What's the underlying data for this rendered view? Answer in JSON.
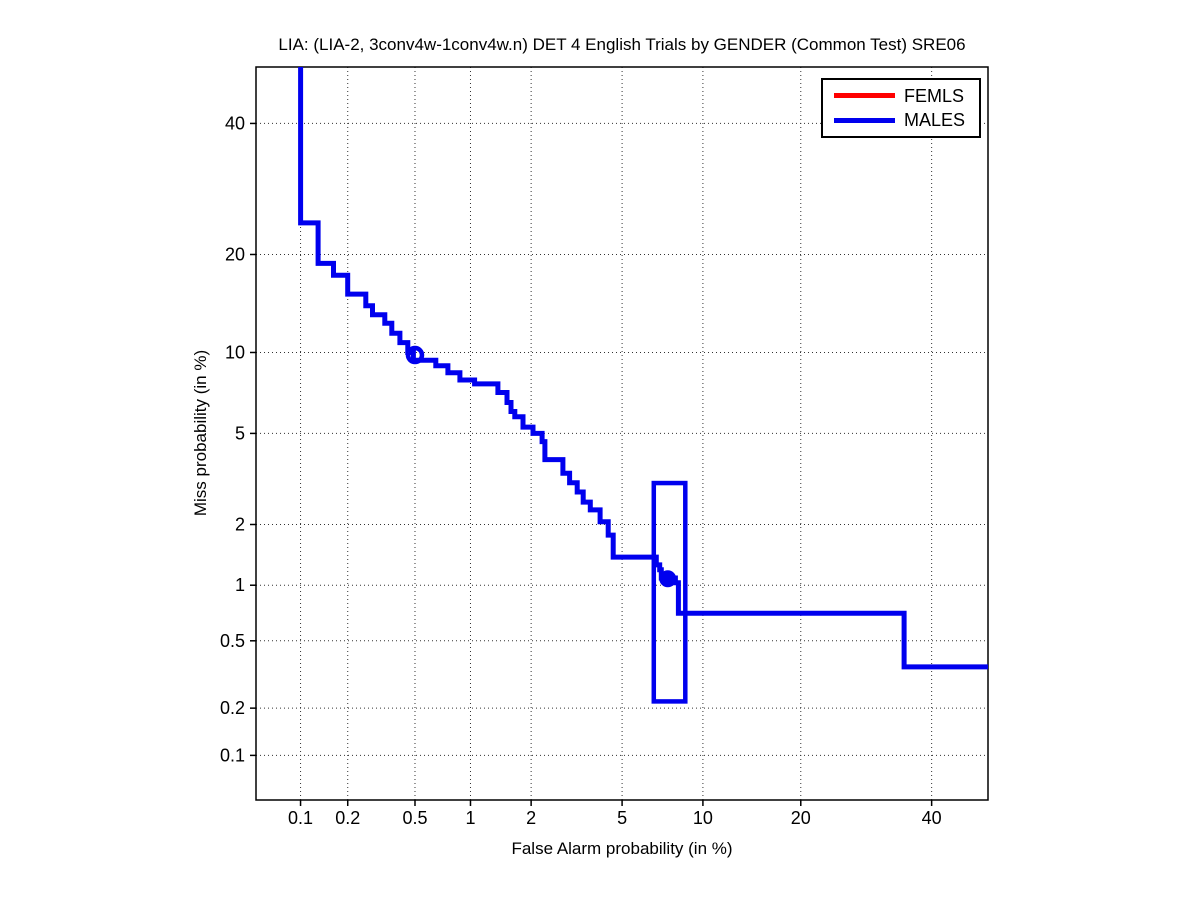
{
  "chart_data": {
    "type": "line",
    "subtype": "DET-curve-staircase",
    "title": "LIA: (LIA-2, 3conv4w-1conv4w.n) DET 4 English Trials by GENDER (Common Test) SRE06",
    "xlabel": "False Alarm probability (in %)",
    "ylabel": "Miss probability (in %)",
    "scale": "probit-probit",
    "grid": "dotted",
    "xlim_pct": [
      0.05,
      50
    ],
    "ylim_pct": [
      0.05,
      50
    ],
    "xticks_pct": [
      0.1,
      0.2,
      0.5,
      1,
      2,
      5,
      10,
      20,
      40
    ],
    "xtick_labels": [
      "0.1",
      "0.2",
      "0.5",
      "1",
      "2",
      "5",
      "10",
      "20",
      "40"
    ],
    "yticks_pct": [
      40,
      20,
      10,
      5,
      2,
      1,
      0.5,
      0.2,
      0.1
    ],
    "ytick_labels": [
      "40",
      "20",
      "10",
      "5",
      "2",
      "1",
      "0.5",
      "0.2",
      "0.1"
    ],
    "legend": {
      "position": "top-right",
      "entries": [
        {
          "label": "FEMLS",
          "color": "#ff0000"
        },
        {
          "label": "MALES",
          "color": "#0000ee"
        }
      ]
    },
    "series": [
      {
        "name": "FEMLS",
        "color": "#ff0000",
        "points_fa_miss_pct": []
      },
      {
        "name": "MALES",
        "color": "#0000ee",
        "points_fa_miss_pct": [
          [
            0.1,
            50
          ],
          [
            0.1,
            24.2
          ],
          [
            0.13,
            24.2
          ],
          [
            0.13,
            18.9
          ],
          [
            0.163,
            18.9
          ],
          [
            0.163,
            17.5
          ],
          [
            0.2,
            17.5
          ],
          [
            0.2,
            15.4
          ],
          [
            0.258,
            15.4
          ],
          [
            0.258,
            14.2
          ],
          [
            0.283,
            14.2
          ],
          [
            0.283,
            13.3
          ],
          [
            0.335,
            13.3
          ],
          [
            0.335,
            12.5
          ],
          [
            0.368,
            12.5
          ],
          [
            0.368,
            11.6
          ],
          [
            0.41,
            11.6
          ],
          [
            0.41,
            10.8
          ],
          [
            0.455,
            10.8
          ],
          [
            0.455,
            10.0
          ],
          [
            0.49,
            10.0
          ],
          [
            0.49,
            9.4
          ],
          [
            0.653,
            9.4
          ],
          [
            0.653,
            9.0
          ],
          [
            0.759,
            9.0
          ],
          [
            0.759,
            8.5
          ],
          [
            0.88,
            8.5
          ],
          [
            0.88,
            8.0
          ],
          [
            1.05,
            8.0
          ],
          [
            1.05,
            7.74
          ],
          [
            1.38,
            7.74
          ],
          [
            1.38,
            7.2
          ],
          [
            1.53,
            7.2
          ],
          [
            1.53,
            6.6
          ],
          [
            1.6,
            6.6
          ],
          [
            1.6,
            6.1
          ],
          [
            1.67,
            6.1
          ],
          [
            1.67,
            5.82
          ],
          [
            1.83,
            5.82
          ],
          [
            1.83,
            5.3
          ],
          [
            2.04,
            5.3
          ],
          [
            2.04,
            5.0
          ],
          [
            2.25,
            5.0
          ],
          [
            2.25,
            4.63
          ],
          [
            2.32,
            4.63
          ],
          [
            2.32,
            3.9
          ],
          [
            2.8,
            3.9
          ],
          [
            2.8,
            3.41
          ],
          [
            3.0,
            3.41
          ],
          [
            3.0,
            3.1
          ],
          [
            3.24,
            3.1
          ],
          [
            3.24,
            2.82
          ],
          [
            3.44,
            2.82
          ],
          [
            3.44,
            2.54
          ],
          [
            3.69,
            2.54
          ],
          [
            3.69,
            2.34
          ],
          [
            4.06,
            2.34
          ],
          [
            4.06,
            2.06
          ],
          [
            4.39,
            2.06
          ],
          [
            4.39,
            1.78
          ],
          [
            4.6,
            1.78
          ],
          [
            4.6,
            1.39
          ],
          [
            6.8,
            1.39
          ],
          [
            6.8,
            1.27
          ],
          [
            7.0,
            1.27
          ],
          [
            7.0,
            1.2
          ],
          [
            7.1,
            1.2
          ],
          [
            7.1,
            1.09
          ],
          [
            8.0,
            1.09
          ],
          [
            8.0,
            1.03
          ],
          [
            8.2,
            1.03
          ],
          [
            8.2,
            0.71
          ],
          [
            35.3,
            0.71
          ],
          [
            35.3,
            0.354
          ],
          [
            50,
            0.354
          ]
        ]
      }
    ],
    "annotations": {
      "open_circle_marker": {
        "series": "MALES",
        "fa_pct": 0.5,
        "miss_pct": 9.8,
        "color": "#0000ee"
      },
      "filled_marker": {
        "series": "MALES",
        "fa_pct": 7.5,
        "miss_pct": 1.08,
        "color": "#0000ee"
      },
      "box": {
        "series": "MALES",
        "fa_pct_range": [
          6.65,
          8.68
        ],
        "miss_pct_range": [
          0.22,
          3.09
        ],
        "color": "#0000ee"
      }
    },
    "colors": {
      "axis": "#000000",
      "grid": "#333333",
      "background": "#ffffff"
    }
  }
}
